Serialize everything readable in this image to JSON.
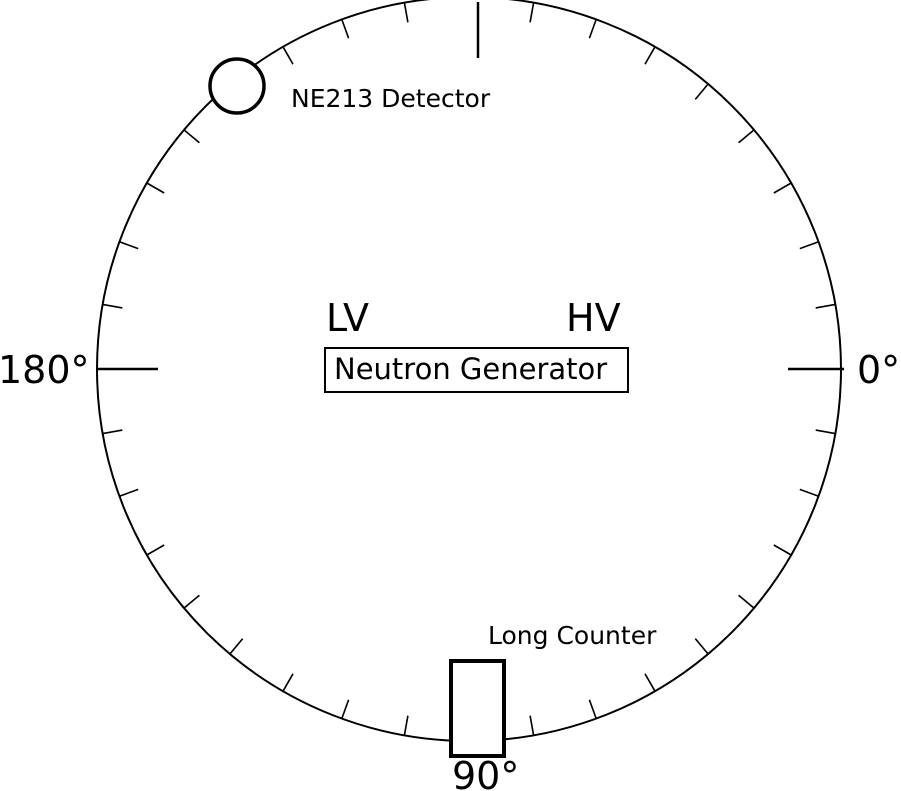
{
  "labels": {
    "angle_0": "0°",
    "angle_90": "90°",
    "angle_180": "180°",
    "low_voltage": "LV",
    "high_voltage": "HV",
    "neutron_generator": "Neutron Generator",
    "ne213_detector": "NE213 Detector",
    "long_counter": "Long Counter"
  },
  "scale": {
    "tick_step_deg": 10,
    "major_ticks_deg": [
      0,
      90,
      180
    ],
    "angle_direction": "clockwise from right"
  },
  "components": {
    "ne213_detector": {
      "angle_deg": 225,
      "shape": "circle"
    },
    "long_counter": {
      "angle_deg": 90,
      "shape": "rectangle"
    }
  }
}
